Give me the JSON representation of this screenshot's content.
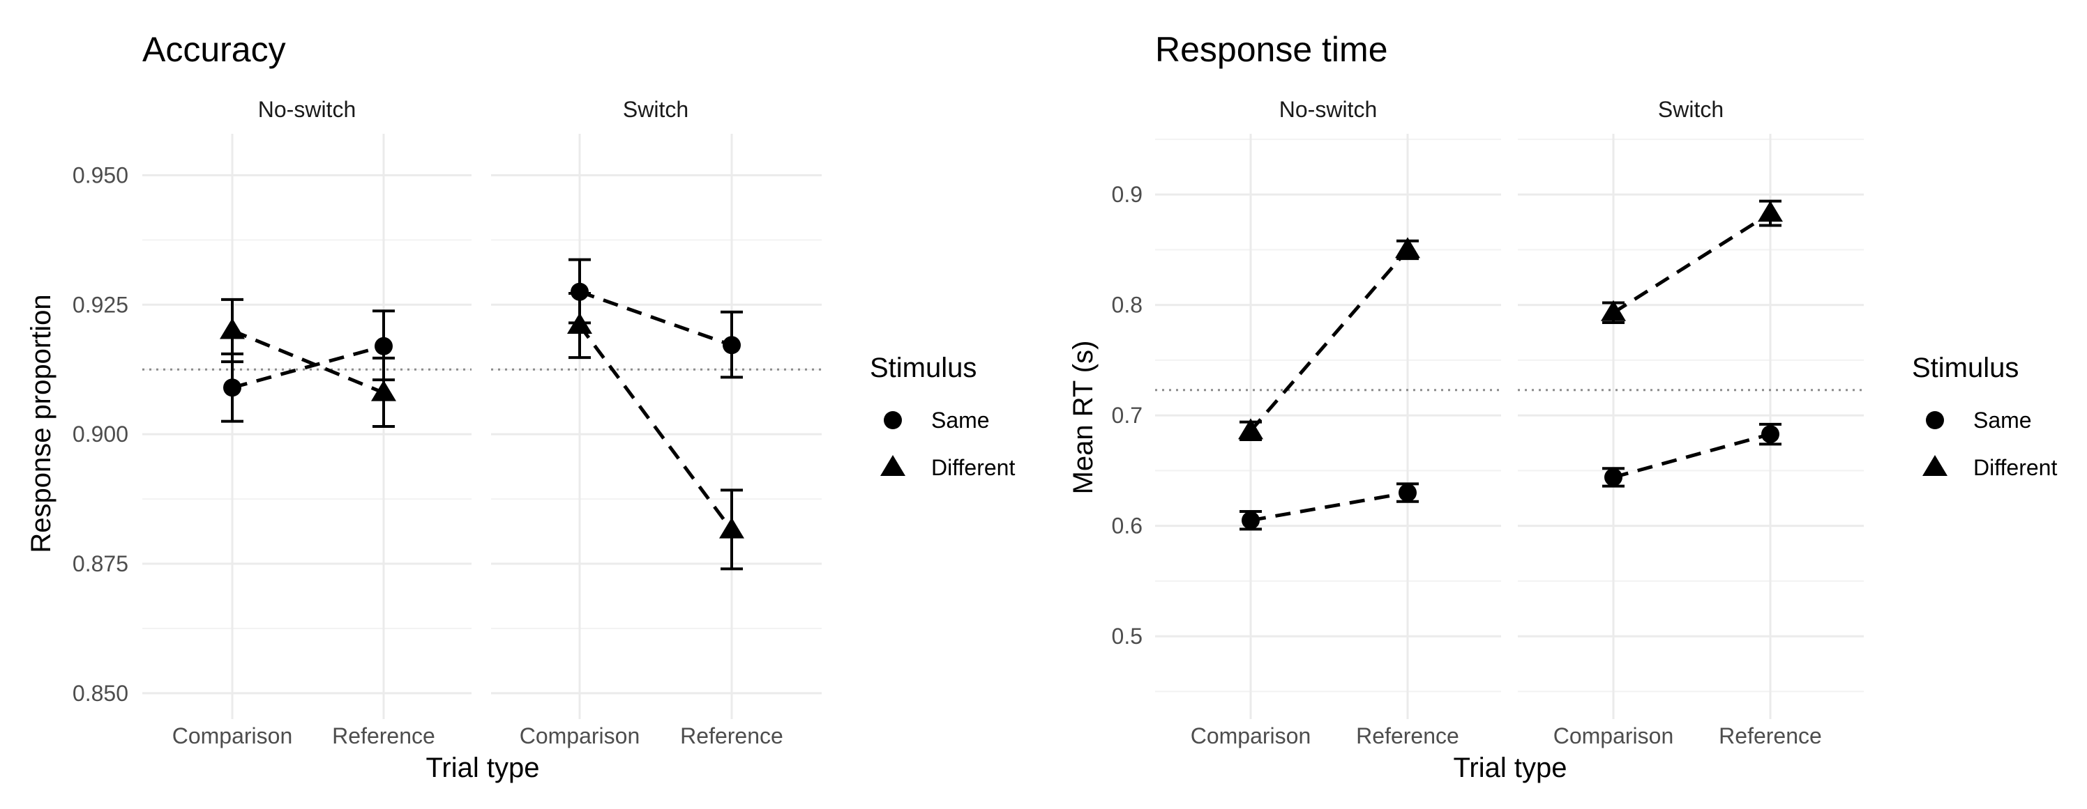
{
  "chart_data": [
    {
      "type": "line",
      "title": "Accuracy",
      "facets": [
        "No-switch",
        "Switch"
      ],
      "categories": [
        "Comparison",
        "Reference"
      ],
      "xlabel": "Trial type",
      "ylabel": "Response proportion",
      "ylim": [
        0.845,
        0.958
      ],
      "yticks": [
        0.85,
        0.875,
        0.9,
        0.925,
        0.95
      ],
      "ytick_labels": [
        "0.850",
        "0.875",
        "0.900",
        "0.925",
        "0.950"
      ],
      "reference_line": 0.9125,
      "grid": true,
      "legend": {
        "title": "Stimulus",
        "position": "right",
        "entries": [
          "Same",
          "Different"
        ]
      },
      "series": [
        {
          "name": "Same",
          "marker": "circle",
          "panels": [
            {
              "facet": "No-switch",
              "values": [
                0.909,
                0.917
              ],
              "lower": [
                0.9025,
                0.9105
              ],
              "upper": [
                0.9155,
                0.9238
              ]
            },
            {
              "facet": "Switch",
              "values": [
                0.9275,
                0.9172
              ],
              "lower": [
                0.9215,
                0.911
              ],
              "upper": [
                0.9337,
                0.9236
              ]
            }
          ]
        },
        {
          "name": "Different",
          "marker": "triangle",
          "panels": [
            {
              "facet": "No-switch",
              "values": [
                0.92,
                0.908
              ],
              "lower": [
                0.914,
                0.9015
              ],
              "upper": [
                0.926,
                0.9147
              ]
            },
            {
              "facet": "Switch",
              "values": [
                0.921,
                0.8815
              ],
              "lower": [
                0.9148,
                0.874
              ],
              "upper": [
                0.9272,
                0.8892
              ]
            }
          ]
        }
      ]
    },
    {
      "type": "line",
      "title": "Response time",
      "facets": [
        "No-switch",
        "Switch"
      ],
      "categories": [
        "Comparison",
        "Reference"
      ],
      "xlabel": "Trial type",
      "ylabel": "Mean RT (s)",
      "ylim": [
        0.425,
        0.955
      ],
      "yticks": [
        0.5,
        0.6,
        0.7,
        0.8,
        0.9
      ],
      "ytick_labels": [
        "0.5",
        "0.6",
        "0.7",
        "0.8",
        "0.9"
      ],
      "reference_line": 0.723,
      "grid": true,
      "legend": {
        "title": "Stimulus",
        "position": "right",
        "entries": [
          "Same",
          "Different"
        ]
      },
      "series": [
        {
          "name": "Same",
          "marker": "circle",
          "panels": [
            {
              "facet": "No-switch",
              "values": [
                0.605,
                0.63
              ],
              "lower": [
                0.597,
                0.622
              ],
              "upper": [
                0.613,
                0.638
              ]
            },
            {
              "facet": "Switch",
              "values": [
                0.644,
                0.683
              ],
              "lower": [
                0.636,
                0.674
              ],
              "upper": [
                0.652,
                0.692
              ]
            }
          ]
        },
        {
          "name": "Different",
          "marker": "triangle",
          "panels": [
            {
              "facet": "No-switch",
              "values": [
                0.686,
                0.85
              ],
              "lower": [
                0.678,
                0.842
              ],
              "upper": [
                0.694,
                0.858
              ]
            },
            {
              "facet": "Switch",
              "values": [
                0.793,
                0.883
              ],
              "lower": [
                0.784,
                0.872
              ],
              "upper": [
                0.802,
                0.894
              ]
            }
          ]
        }
      ]
    }
  ]
}
